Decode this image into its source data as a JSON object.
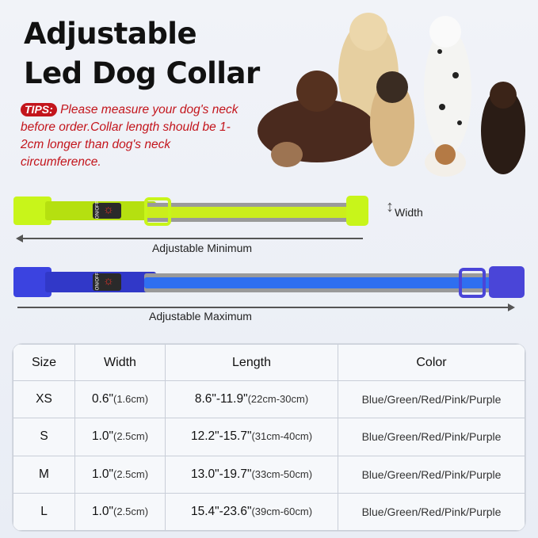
{
  "title": {
    "line1": "Adjustable",
    "line2": "Led Dog Collar"
  },
  "tips": {
    "badge": "TIPS:",
    "text": "Please measure your dog's neck before order.Collar length should be 1-2cm longer than dog's neck circumference."
  },
  "collars": [
    {
      "button_label": "ON/OFF",
      "color": "#c8f51a",
      "label": "Adjustable Minimum"
    },
    {
      "button_label": "ON/OFF",
      "color": "#3b43e0",
      "label": "Adjustable Maximum"
    }
  ],
  "width_label": "Width",
  "table": {
    "headers": [
      "Size",
      "Width",
      "Length",
      "Color"
    ],
    "rows": [
      {
        "size": "XS",
        "width": "0.6\"",
        "width_cm": "(1.6cm)",
        "length": "8.6\"-11.9\"",
        "length_cm": "(22cm-30cm)",
        "color": "Blue/Green/Red/Pink/Purple"
      },
      {
        "size": "S",
        "width": "1.0\"",
        "width_cm": "(2.5cm)",
        "length": "12.2\"-15.7\"",
        "length_cm": "(31cm-40cm)",
        "color": "Blue/Green/Red/Pink/Purple"
      },
      {
        "size": "M",
        "width": "1.0\"",
        "width_cm": "(2.5cm)",
        "length": "13.0\"-19.7\"",
        "length_cm": "(33cm-50cm)",
        "color": "Blue/Green/Red/Pink/Purple"
      },
      {
        "size": "L",
        "width": "1.0\"",
        "width_cm": "(2.5cm)",
        "length": "15.4\"-23.6\"",
        "length_cm": "(39cm-60cm)",
        "color": "Blue/Green/Red/Pink/Purple"
      }
    ]
  }
}
